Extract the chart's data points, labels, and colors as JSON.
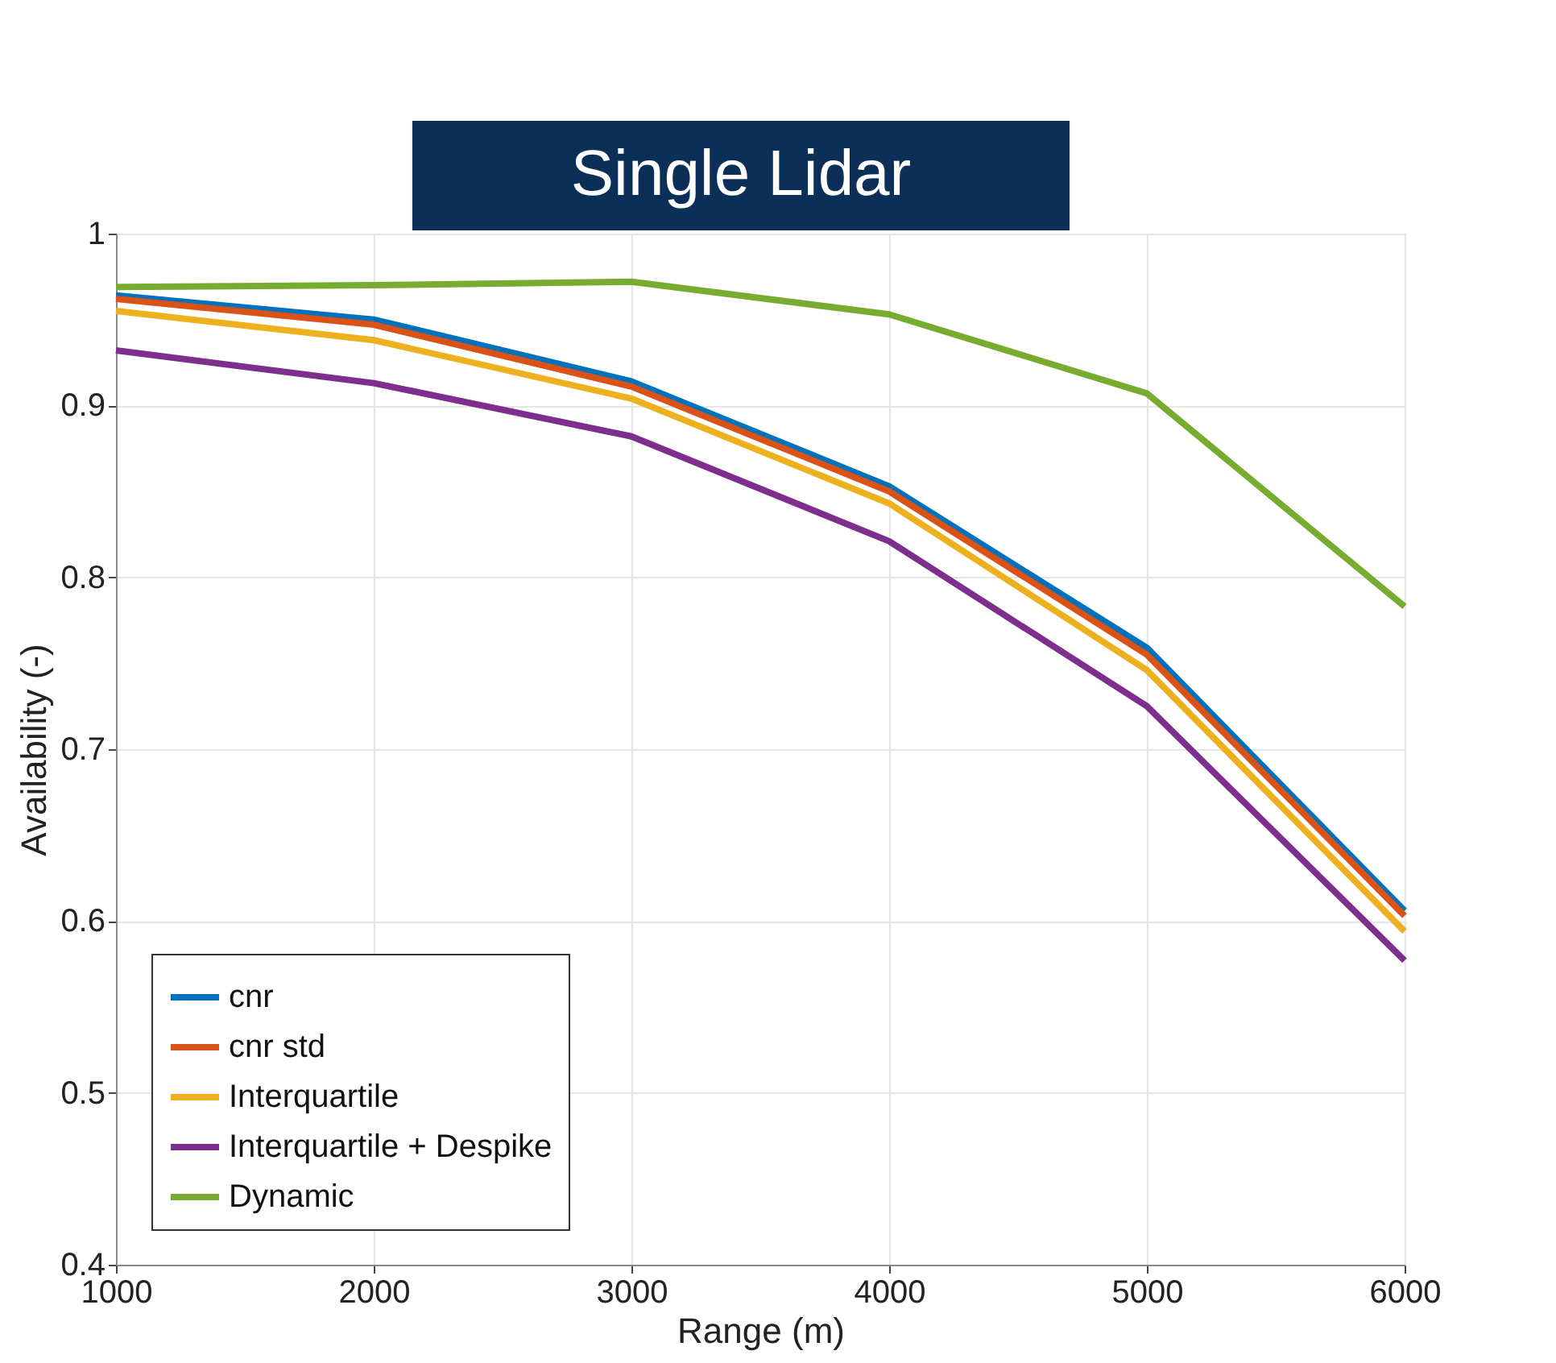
{
  "chart_data": {
    "type": "line",
    "title": "Single Lidar",
    "xlabel": "Range (m)",
    "ylabel": "Availability (-)",
    "x": [
      1000,
      2000,
      3000,
      4000,
      5000,
      6000
    ],
    "series": [
      {
        "name": "cnr",
        "color": "#0072bd",
        "values": [
          0.964,
          0.95,
          0.914,
          0.853,
          0.759,
          0.606
        ]
      },
      {
        "name": "cnr std",
        "color": "#d95319",
        "values": [
          0.962,
          0.947,
          0.911,
          0.85,
          0.755,
          0.603
        ]
      },
      {
        "name": "Interquartile",
        "color": "#edb120",
        "values": [
          0.955,
          0.938,
          0.904,
          0.843,
          0.746,
          0.594
        ]
      },
      {
        "name": "Interquartile + Despike",
        "color": "#7e2f8e",
        "values": [
          0.932,
          0.913,
          0.882,
          0.821,
          0.725,
          0.577
        ]
      },
      {
        "name": "Dynamic",
        "color": "#77ac30",
        "values": [
          0.969,
          0.97,
          0.972,
          0.953,
          0.907,
          0.783
        ]
      }
    ],
    "xlim": [
      1000,
      6000
    ],
    "xticks": [
      1000,
      2000,
      3000,
      4000,
      5000,
      6000
    ],
    "ylim": [
      0.4,
      1
    ],
    "yticks": [
      0.4,
      0.5,
      0.6,
      0.7,
      0.8,
      0.9,
      1
    ],
    "grid": true,
    "legend": "bottom left",
    "line_style": "solid",
    "marker": "none"
  }
}
